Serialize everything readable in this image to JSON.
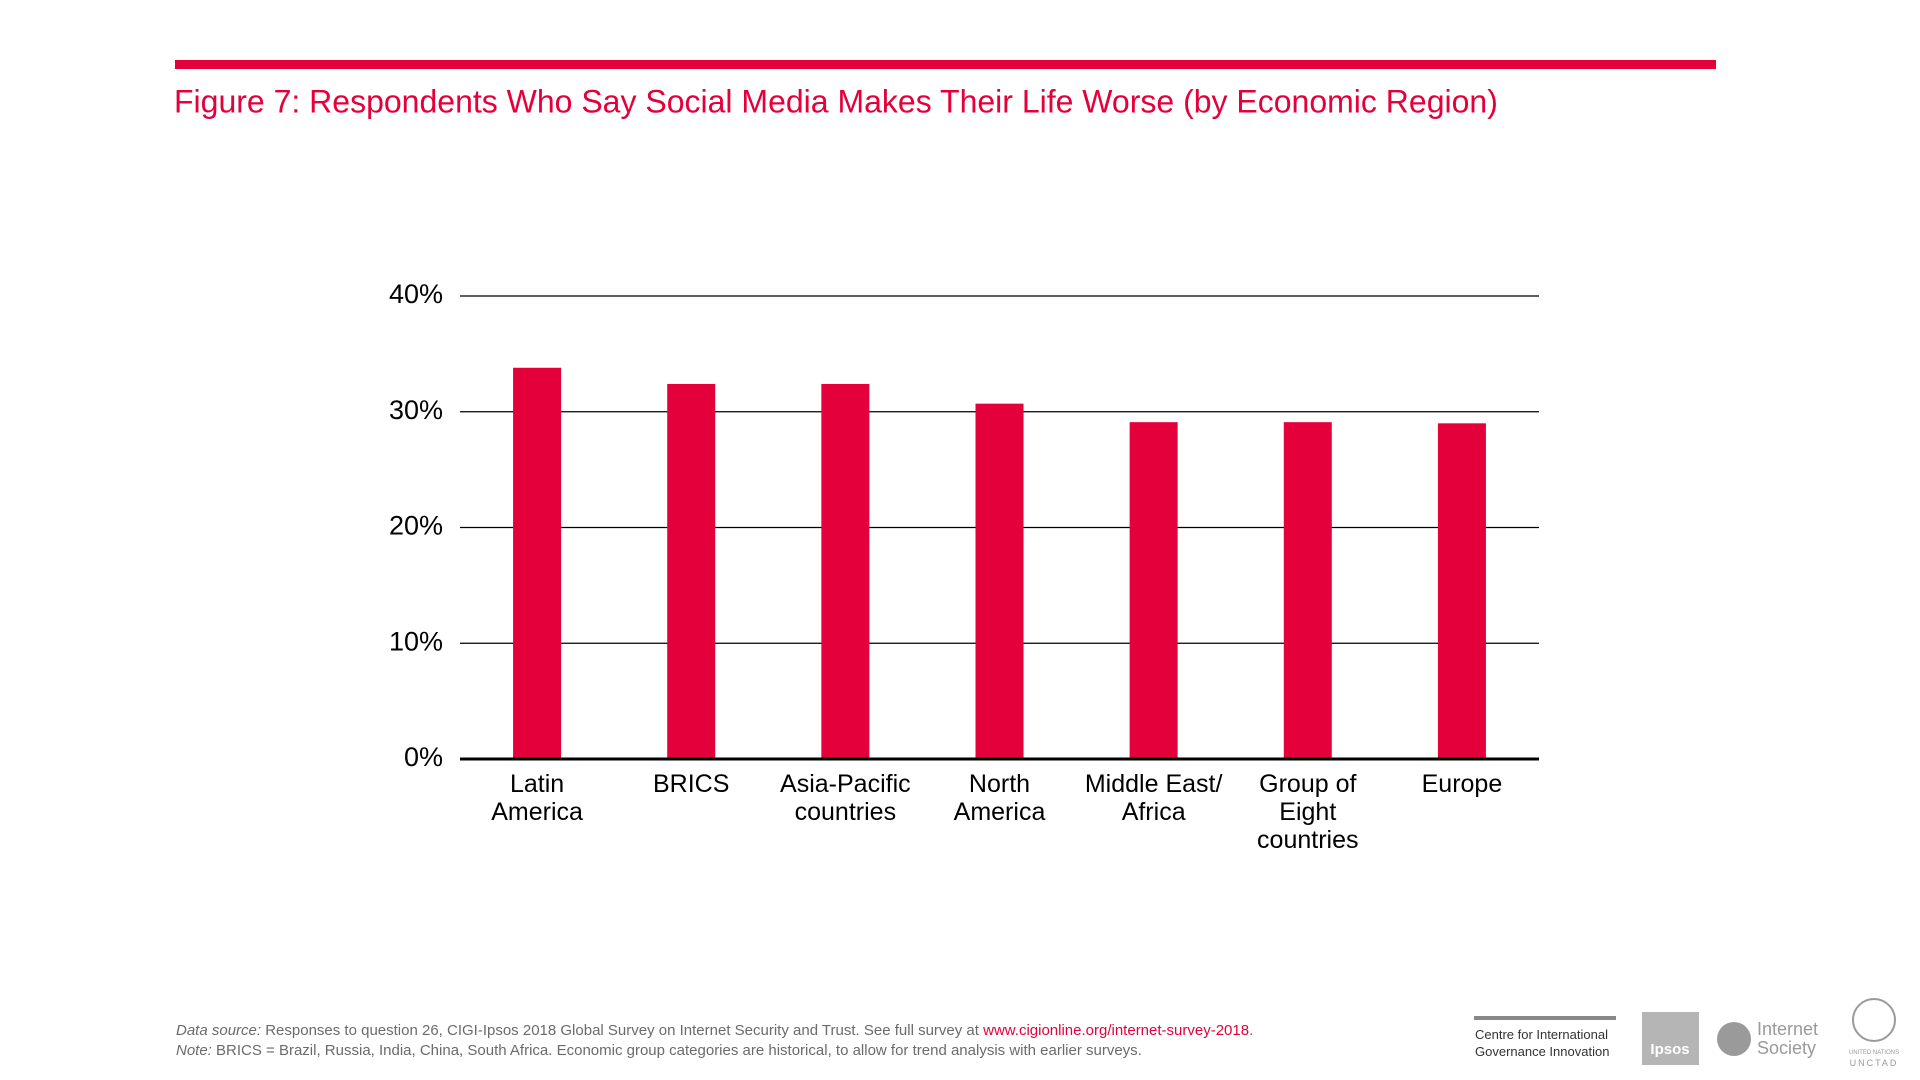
{
  "chart_data": {
    "type": "bar",
    "title": "Figure 7: Respondents Who Say Social Media Makes Their Life Worse (by Economic Region)",
    "categories": [
      "Latin\nAmerica",
      "BRICS",
      "Asia-Pacific\ncountries",
      "North\nAmerica",
      "Middle East/\nAfrica",
      "Group of\nEight\ncountries",
      "Europe"
    ],
    "values": [
      33.8,
      32.4,
      32.4,
      30.7,
      29.1,
      29.1,
      29.0
    ],
    "color": "#e4003b",
    "ylim": [
      0,
      40
    ],
    "yticks": [
      {
        "value": 0,
        "label": "0%"
      },
      {
        "value": 10,
        "label": "10%"
      },
      {
        "value": 20,
        "label": "20%"
      },
      {
        "value": 30,
        "label": "30%"
      },
      {
        "value": 40,
        "label": "40%"
      }
    ],
    "grid": true
  },
  "footer": {
    "source_label": "Data source:",
    "source_text": " Responses to question 26, CIGI-Ipsos 2018 Global Survey on Internet Security and Trust. See full survey at ",
    "source_link": "www.cigionline.org/internet-survey-2018",
    "source_end": ".",
    "note_label": "Note:",
    "note_text": " BRICS = Brazil, Russia, India, China, South Africa. Economic group categories are historical, to allow for trend analysis with earlier surveys."
  },
  "logos": {
    "cigi_line1": "Centre for International",
    "cigi_line2": "Governance Innovation",
    "ipsos": "Ipsos",
    "isoc_line1": "Internet",
    "isoc_line2": "Society",
    "un_line1": "UNITED NATIONS",
    "un_line2": "UNCTAD"
  }
}
